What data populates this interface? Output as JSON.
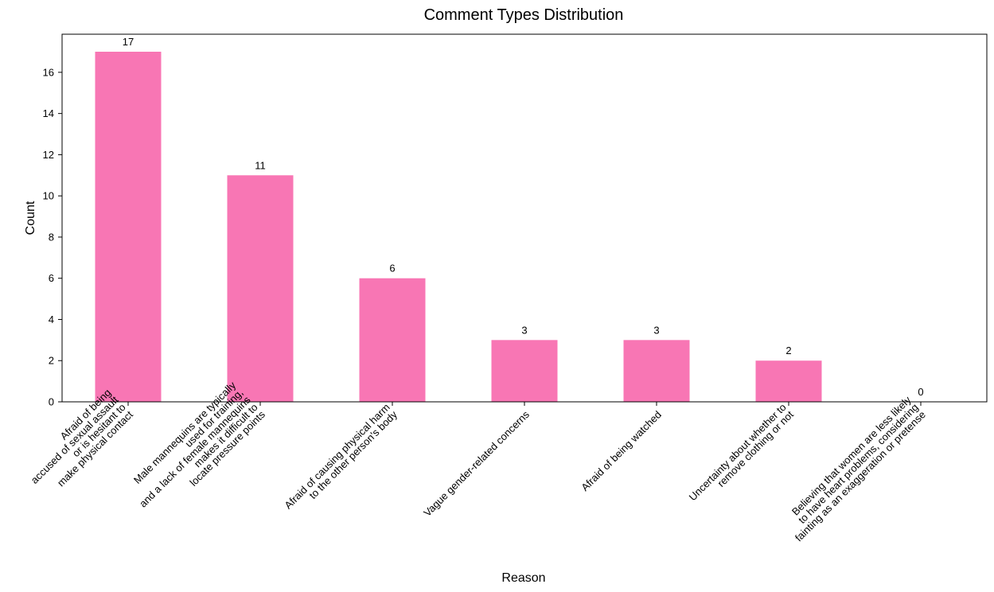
{
  "chart_data": {
    "type": "bar",
    "title": "Comment Types Distribution",
    "xlabel": "Reason",
    "ylabel": "Count",
    "ylim": [
      0,
      17.85
    ],
    "yticks": [
      0,
      2,
      4,
      6,
      8,
      10,
      12,
      14,
      16
    ],
    "grid": false,
    "bar_color": "#f876b4",
    "categories": [
      [
        "Afraid of being",
        "accused of sexual assault",
        "or is hesitant to",
        "make physical contact"
      ],
      [
        "Male mannequins are typically",
        "used for training,",
        "and a lack of female mannequins",
        "makes it difficult to",
        "locate pressure points"
      ],
      [
        "Afraid of causing physical harm",
        "to the other person's body"
      ],
      [
        "Vague gender-related concerns"
      ],
      [
        "Afraid of being watched"
      ],
      [
        "Uncertainty about whether to",
        "remove clothing or not"
      ],
      [
        "Believing that women are less likely",
        "to have heart problems, considering",
        "fainting as an exaggeration or pretense"
      ]
    ],
    "values": [
      17,
      11,
      6,
      3,
      3,
      2,
      0
    ]
  }
}
